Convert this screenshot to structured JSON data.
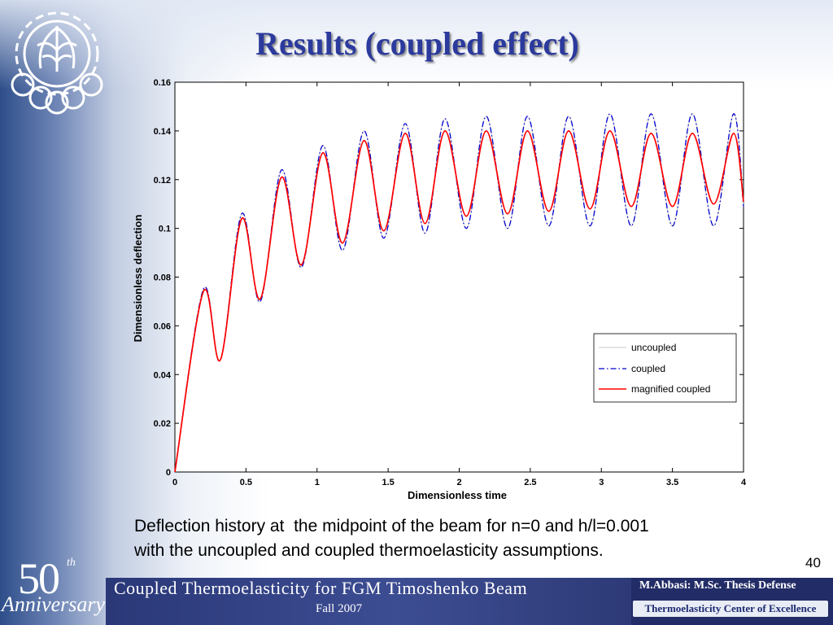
{
  "slide": {
    "title": "Results (coupled effect)",
    "caption": "Deflection history at  the midpoint of the beam for n=0 and h/l=0.001\nwith the uncoupled and coupled thermoelasticity assumptions.",
    "page_number": "40"
  },
  "footer": {
    "anniversary_number": "50",
    "anniversary_suffix": "th",
    "anniversary_word": "Anniversary",
    "title": "Coupled Thermoelasticity for FGM Timoshenko Beam",
    "term": "Fall 2007",
    "author": "M.Abbasi: M.Sc. Thesis Defense",
    "center": "Thermoelasticity Center of Excellence"
  },
  "chart_data": {
    "type": "line",
    "title": "",
    "xlabel": "Dimensionless time",
    "ylabel": "Dimensionless deflection",
    "xlim": [
      0,
      4
    ],
    "ylim": [
      0,
      0.16
    ],
    "xticks": [
      0,
      0.5,
      1,
      1.5,
      2,
      2.5,
      3,
      3.5,
      4
    ],
    "xtick_labels": [
      "0",
      "0.5",
      "1",
      "1.5",
      "2",
      "2.5",
      "3",
      "3.5",
      "4"
    ],
    "yticks": [
      0,
      0.02,
      0.04,
      0.06,
      0.08,
      0.1,
      0.12,
      0.14,
      0.16
    ],
    "ytick_labels": [
      "0",
      "0.02",
      "0.04",
      "0.06",
      "0.08",
      "0.1",
      "0.12",
      "0.14",
      "0.16"
    ],
    "grid": false,
    "legend_position": "lower-right",
    "series": [
      {
        "name": "uncoupled",
        "color": "#c8c8c8",
        "style": "solid",
        "x": [
          0,
          0.2,
          0.32,
          0.47,
          0.6,
          0.75,
          0.89,
          1.04,
          1.18,
          1.33,
          1.47,
          1.62,
          1.76,
          1.9,
          2.05,
          2.19,
          2.34,
          2.48,
          2.63,
          2.77,
          2.92,
          3.06,
          3.21,
          3.35,
          3.5,
          3.64,
          3.79,
          3.93,
          4.0
        ],
        "y": [
          0,
          0.075,
          0.046,
          0.106,
          0.07,
          0.124,
          0.084,
          0.134,
          0.091,
          0.14,
          0.096,
          0.143,
          0.098,
          0.145,
          0.1,
          0.146,
          0.1,
          0.146,
          0.101,
          0.146,
          0.101,
          0.147,
          0.101,
          0.147,
          0.101,
          0.147,
          0.101,
          0.147,
          0.109
        ]
      },
      {
        "name": "coupled",
        "color": "#0000cc",
        "style": "dash-dot",
        "x": [
          0,
          0.2,
          0.32,
          0.47,
          0.6,
          0.75,
          0.89,
          1.04,
          1.18,
          1.33,
          1.47,
          1.62,
          1.76,
          1.9,
          2.05,
          2.19,
          2.34,
          2.48,
          2.63,
          2.77,
          2.92,
          3.06,
          3.21,
          3.35,
          3.5,
          3.64,
          3.79,
          3.93,
          4.0
        ],
        "y": [
          0,
          0.075,
          0.046,
          0.106,
          0.07,
          0.124,
          0.084,
          0.134,
          0.091,
          0.14,
          0.096,
          0.143,
          0.098,
          0.145,
          0.1,
          0.146,
          0.1,
          0.146,
          0.101,
          0.146,
          0.101,
          0.147,
          0.101,
          0.147,
          0.101,
          0.147,
          0.101,
          0.147,
          0.109
        ]
      },
      {
        "name": "magnified coupled",
        "color": "#ff0000",
        "style": "solid",
        "x": [
          0,
          0.2,
          0.32,
          0.47,
          0.6,
          0.75,
          0.89,
          1.04,
          1.18,
          1.33,
          1.47,
          1.62,
          1.76,
          1.9,
          2.05,
          2.19,
          2.34,
          2.48,
          2.63,
          2.77,
          2.92,
          3.06,
          3.21,
          3.35,
          3.5,
          3.64,
          3.79,
          3.93,
          4.0
        ],
        "y": [
          0,
          0.074,
          0.046,
          0.104,
          0.071,
          0.121,
          0.085,
          0.131,
          0.094,
          0.136,
          0.099,
          0.139,
          0.102,
          0.14,
          0.105,
          0.14,
          0.106,
          0.14,
          0.107,
          0.14,
          0.108,
          0.14,
          0.109,
          0.139,
          0.109,
          0.139,
          0.11,
          0.139,
          0.111
        ]
      }
    ]
  }
}
